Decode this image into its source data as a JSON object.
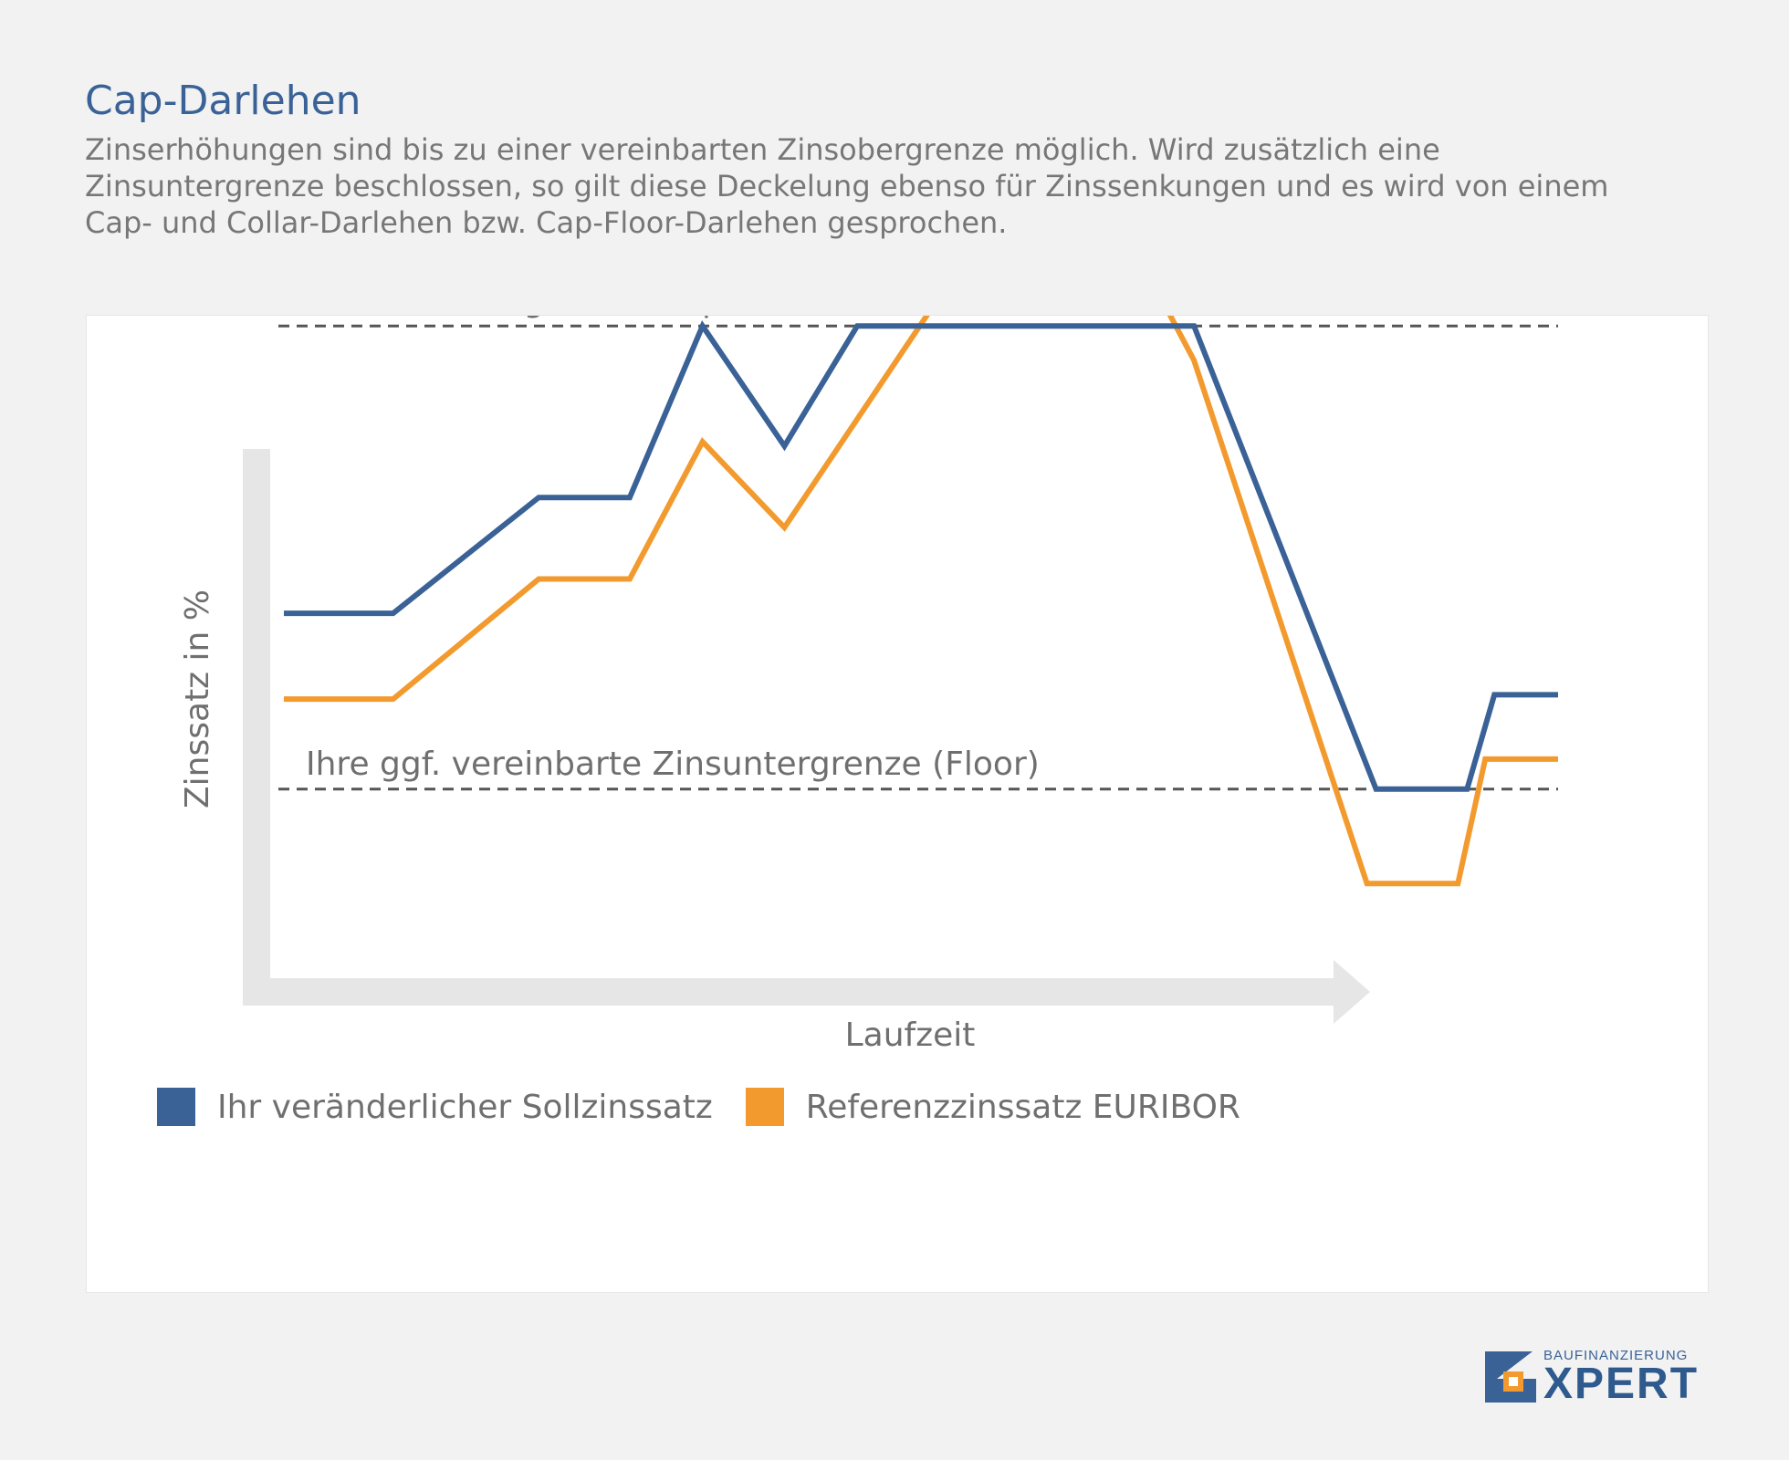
{
  "header": {
    "title": "Cap-Darlehen",
    "subtitle": "Zinserhöhungen sind bis zu einer vereinbarten Zinsobergrenze möglich. Wird zusätzlich eine Zinsuntergrenze beschlossen, so gilt diese Deckelung ebenso für Zinssenkungen und es wird von einem Cap- und Collar-Darlehen bzw. Cap-Floor-Darlehen gesprochen."
  },
  "chart_data": {
    "type": "line",
    "xlabel": "Laufzeit",
    "ylabel": "Zinssatz in %",
    "grid": false,
    "legend_position": "bottom-left",
    "reference_lines": [
      {
        "name": "cap",
        "label": "Ihre Zinsobergrenze (Cap)",
        "y": 7.7,
        "style": "dashed",
        "color": "#555555"
      },
      {
        "name": "floor",
        "label": "Ihre ggf. vereinbarte Zinsuntergrenze (Floor)",
        "y": 2.3,
        "style": "dashed",
        "color": "#555555"
      }
    ],
    "xlim": [
      0,
      14
    ],
    "ylim": [
      0,
      10
    ],
    "series": [
      {
        "name": "Ihr veränderlicher Sollzinssatz",
        "color": "#3a6297",
        "points": [
          [
            0,
            4.35
          ],
          [
            1.2,
            4.35
          ],
          [
            2.8,
            5.7
          ],
          [
            3.8,
            5.7
          ],
          [
            4.6,
            7.7
          ],
          [
            5.5,
            6.3
          ],
          [
            6.3,
            7.7
          ],
          [
            7.5,
            7.7
          ],
          [
            10,
            7.7
          ],
          [
            12,
            2.3
          ],
          [
            13,
            2.3
          ],
          [
            13.3,
            3.4
          ],
          [
            14,
            3.4
          ]
        ]
      },
      {
        "name": "Referenzzinssatz EURIBOR",
        "color": "#f39a2e",
        "points": [
          [
            0,
            3.35
          ],
          [
            1.2,
            3.35
          ],
          [
            2.8,
            4.75
          ],
          [
            3.8,
            4.75
          ],
          [
            4.6,
            6.35
          ],
          [
            5.5,
            5.35
          ],
          [
            8,
            9.3
          ],
          [
            9,
            9.3
          ],
          [
            10,
            7.3
          ],
          [
            11.9,
            1.2
          ],
          [
            12.9,
            1.2
          ],
          [
            13.2,
            2.65
          ],
          [
            14,
            2.65
          ]
        ]
      }
    ]
  },
  "legend": {
    "items": [
      {
        "label": "Ihr veränderlicher Sollzinssatz",
        "color": "#3a6297"
      },
      {
        "label": "Referenzzinssatz EURIBOR",
        "color": "#f39a2e"
      }
    ]
  },
  "logo": {
    "top_text": "BAUFINANZIERUNG",
    "main_text": "XPERT",
    "color": "#3a6297",
    "accent": "#f39a2e"
  }
}
